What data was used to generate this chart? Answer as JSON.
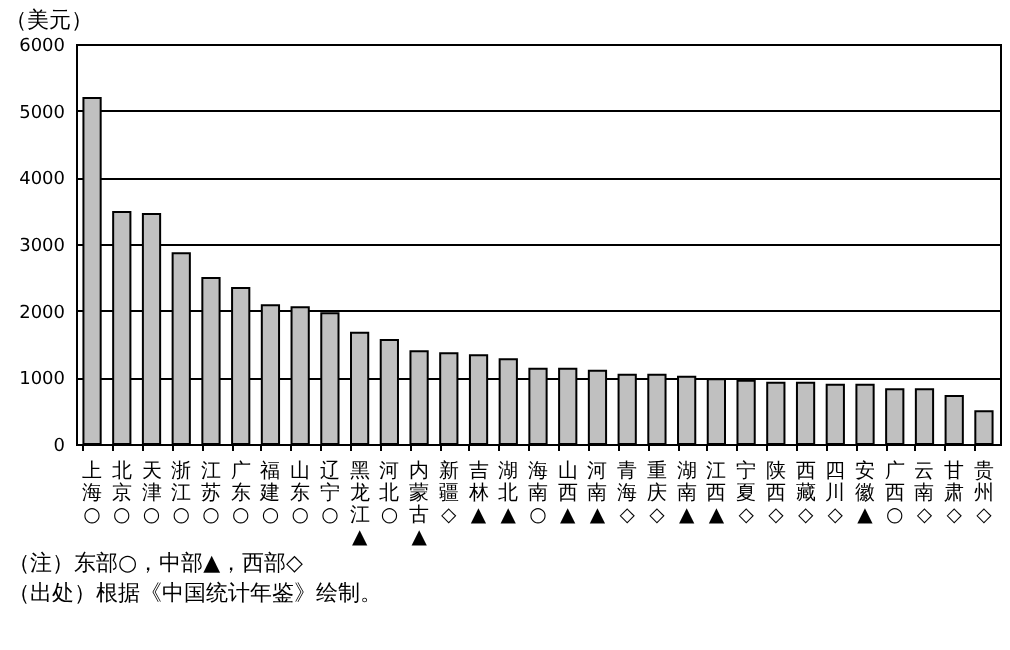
{
  "chart_data": {
    "type": "bar",
    "ylabel": "（美元）",
    "categories": [
      "上海○",
      "北京○",
      "天津○",
      "浙江○",
      "江苏○",
      "广东○",
      "福建○",
      "山东○",
      "辽宁○",
      "黑龙江▲",
      "河北○",
      "内蒙古▲",
      "新疆◇",
      "吉林▲",
      "湖北▲",
      "海南○",
      "山西▲",
      "河南▲",
      "青海◇",
      "重庆◇",
      "湖南▲",
      "江西▲",
      "宁夏◇",
      "陕西◇",
      "西藏◇",
      "四川◇",
      "安徽▲",
      "广西○",
      "云南◇",
      "甘肃◇",
      "贵州◇"
    ],
    "values": [
      5190,
      3480,
      3450,
      2860,
      2490,
      2340,
      2080,
      2050,
      1960,
      1670,
      1560,
      1390,
      1360,
      1330,
      1270,
      1130,
      1130,
      1100,
      1040,
      1040,
      1010,
      970,
      950,
      920,
      920,
      890,
      890,
      820,
      820,
      720,
      490
    ],
    "color": "#c0c0c0",
    "ylim": [
      0,
      6000
    ],
    "yticks": [
      0,
      1000,
      2000,
      3000,
      4000,
      5000,
      6000
    ],
    "grid": "y",
    "annotations": [
      "（注）东部○，中部▲，西部◇",
      "（出处）根据《中国统计年鉴》绘制。"
    ]
  }
}
